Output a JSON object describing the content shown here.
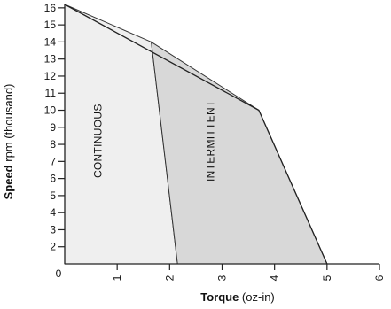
{
  "chart_data": {
    "type": "area",
    "xlabel_bold": "Torque",
    "xlabel_rest": " (oz-in)",
    "ylabel_bold": "Speed",
    "ylabel_rest": " rpm (thousand)",
    "xlim": [
      0,
      6
    ],
    "ylim": [
      1,
      16.2
    ],
    "x_ticks": [
      1,
      2,
      3,
      4,
      5,
      6
    ],
    "y_ticks": [
      2,
      3,
      4,
      5,
      6,
      7,
      8,
      9,
      10,
      11,
      12,
      13,
      14,
      15,
      16
    ],
    "origin_label": "0",
    "regions": [
      {
        "name": "CONTINUOUS",
        "color": "#efefef",
        "polygon": [
          [
            0,
            16.2
          ],
          [
            1.65,
            14
          ],
          [
            2.15,
            1
          ],
          [
            0,
            1
          ]
        ]
      },
      {
        "name": "INTERMITTENT",
        "color": "#d8d8d8",
        "polygon": [
          [
            1.65,
            14
          ],
          [
            3.7,
            10
          ],
          [
            5,
            1
          ],
          [
            2.15,
            1
          ]
        ]
      }
    ],
    "outline": [
      [
        0,
        16.2
      ],
      [
        3.7,
        10
      ],
      [
        5,
        1
      ]
    ],
    "grid": false
  }
}
